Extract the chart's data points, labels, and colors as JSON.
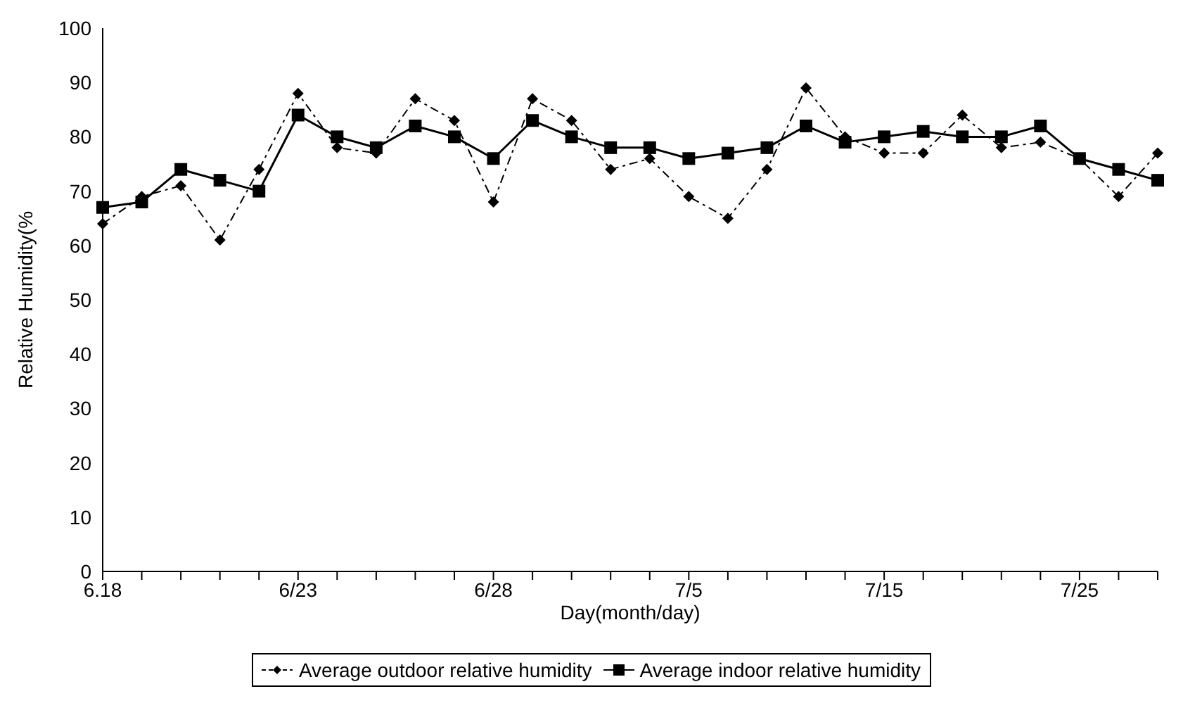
{
  "chart_data": {
    "type": "line",
    "xlabel": "Day(month/day)",
    "ylabel": "Relative Humidity(%",
    "categories": [
      "6.18",
      null,
      null,
      null,
      null,
      "6/23",
      null,
      null,
      null,
      null,
      "6/28",
      null,
      null,
      null,
      null,
      "7/5",
      null,
      null,
      null,
      null,
      "7/15",
      null,
      null,
      null,
      null,
      "7/25",
      null,
      null
    ],
    "series": [
      {
        "name": "Average outdoor relative humidity",
        "color": "#000000",
        "marker": "diamond",
        "line_style": "dashed",
        "values": [
          64,
          69,
          71,
          61,
          74,
          88,
          78,
          77,
          87,
          83,
          68,
          87,
          83,
          74,
          76,
          69,
          65,
          74,
          89,
          80,
          77,
          77,
          84,
          78,
          79,
          76,
          69,
          77
        ]
      },
      {
        "name": "Average indoor relative humidity",
        "color": "#000000",
        "marker": "square",
        "line_style": "solid",
        "values": [
          67,
          68,
          74,
          72,
          70,
          84,
          80,
          78,
          82,
          80,
          76,
          83,
          80,
          78,
          78,
          76,
          77,
          78,
          82,
          79,
          80,
          81,
          80,
          80,
          82,
          76,
          74,
          72
        ]
      }
    ],
    "ylim": [
      0,
      100
    ],
    "yticks": [
      0,
      10,
      20,
      30,
      40,
      50,
      60,
      70,
      80,
      90,
      100
    ],
    "grid": false,
    "legend": "bottom"
  }
}
